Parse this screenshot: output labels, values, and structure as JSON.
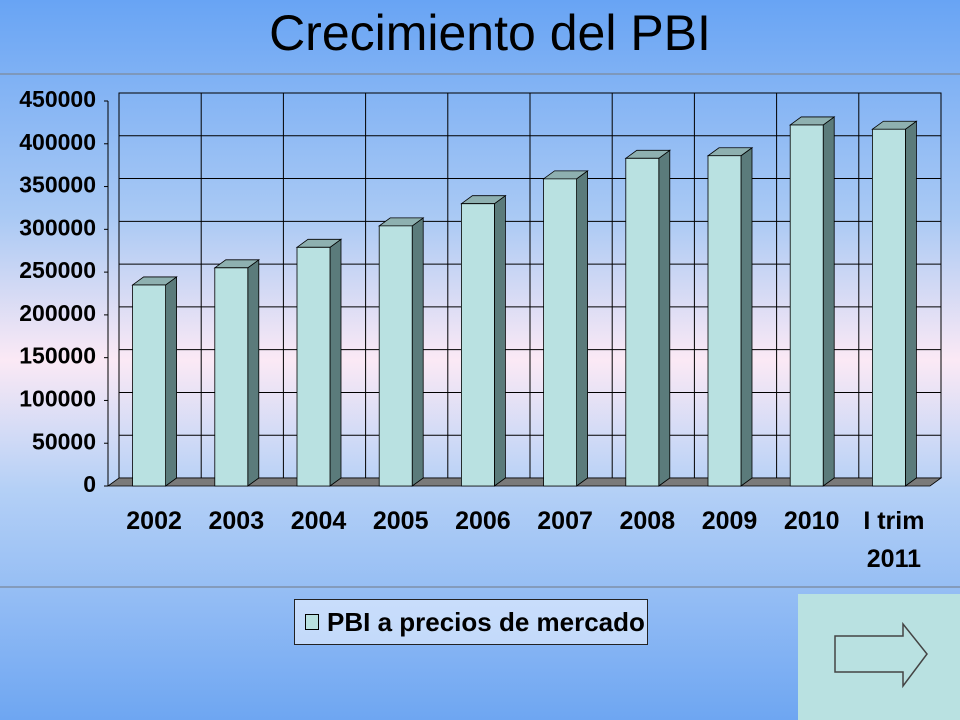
{
  "chart_data": {
    "type": "bar",
    "title": "Crecimiento del PBI",
    "categories": [
      "2002",
      "2003",
      "2004",
      "2005",
      "2006",
      "2007",
      "2008",
      "2009",
      "2010",
      "I trim 2011"
    ],
    "series": [
      {
        "name": "PBI a precios de mercado",
        "color": "#b9e1e1",
        "values": [
          235000,
          255000,
          279000,
          304000,
          330000,
          359000,
          383000,
          386000,
          422000,
          417000
        ]
      }
    ],
    "ylim": [
      0,
      450000
    ],
    "yticks": [
      0,
      50000,
      100000,
      150000,
      200000,
      250000,
      300000,
      350000,
      400000,
      450000
    ],
    "grid": true
  }
}
